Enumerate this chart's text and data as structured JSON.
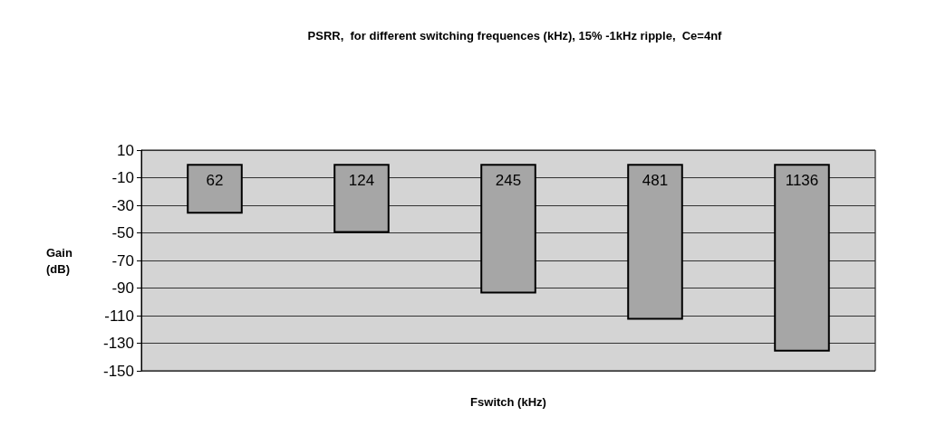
{
  "chart_data": {
    "type": "bar",
    "title": "PSRR,  for different switching frequences (kHz), 15% -1kHz ripple,  Ce=4nf",
    "xlabel": "Fswitch (kHz)",
    "ylabel": "Gain\n(dB)",
    "categories": [
      "62",
      "124",
      "245",
      "481",
      "1136"
    ],
    "values": [
      -36,
      -50,
      -94,
      -113,
      -136
    ],
    "color": "#a6a6a6",
    "ylim": [
      -150,
      10
    ],
    "yticks": [
      10,
      -10,
      -30,
      -50,
      -70,
      -90,
      -110,
      -130,
      -150
    ],
    "grid": "y"
  }
}
